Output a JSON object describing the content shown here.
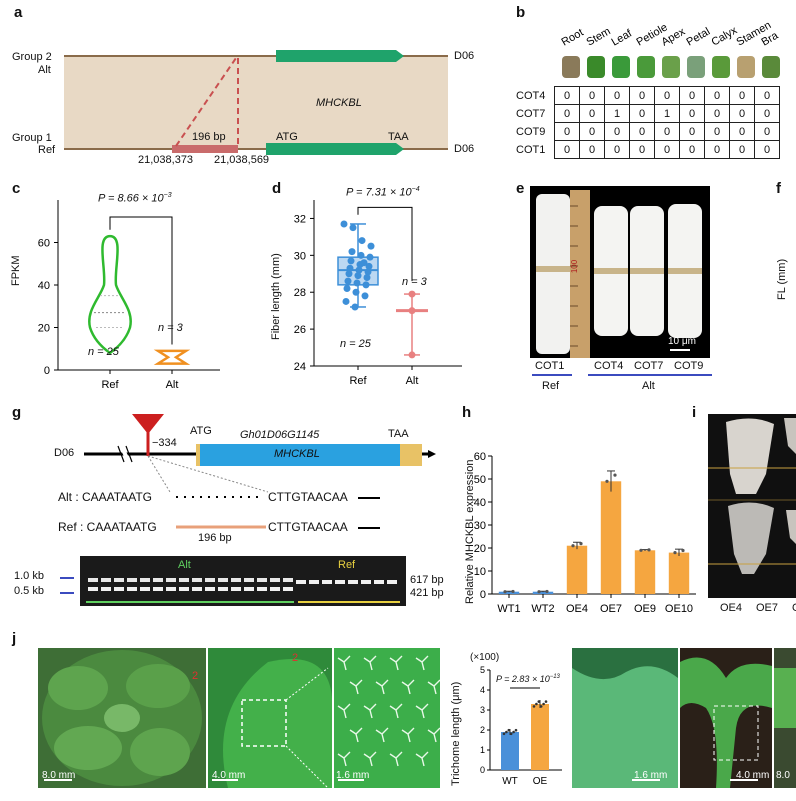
{
  "panels": {
    "a": "a",
    "b": "b",
    "c": "c",
    "d": "d",
    "e": "e",
    "f": "f",
    "g": "g",
    "h": "h",
    "i": "i",
    "j": "j"
  },
  "a": {
    "group2": "Group 2",
    "alt": "Alt",
    "group1": "Group 1",
    "ref": "Ref",
    "d06_top": "D06",
    "d06_bottom": "D06",
    "gene": "MHCKBL",
    "indel": "196 bp",
    "atg": "ATG",
    "taa": "TAA",
    "pos1": "21,038,373",
    "pos2": "21,038,569"
  },
  "b": {
    "tissues": [
      "Root",
      "Stem",
      "Leaf",
      "Petiole",
      "Apex",
      "Petal",
      "Calyx",
      "Stamen",
      "Bra"
    ],
    "rows": [
      {
        "name": "COT4",
        "cells": [
          "0",
          "0",
          "0",
          "0",
          "0",
          "0",
          "0",
          "0",
          "0"
        ]
      },
      {
        "name": "COT7",
        "cells": [
          "0",
          "0",
          "1",
          "0",
          "1",
          "0",
          "0",
          "0",
          "0"
        ]
      },
      {
        "name": "COT9",
        "cells": [
          "0",
          "0",
          "0",
          "0",
          "0",
          "0",
          "0",
          "0",
          "0"
        ]
      },
      {
        "name": "COT1",
        "cells": [
          "0",
          "0",
          "0",
          "0",
          "0",
          "0",
          "0",
          "0",
          "0"
        ]
      }
    ]
  },
  "c": {
    "ylabel": "FPKM",
    "pvalue": "P = 8.66 × 10",
    "pexp": "−3",
    "n_ref": "n = 25",
    "n_alt": "n = 3",
    "chart_data": {
      "type": "violin",
      "categories": [
        "Ref",
        "Alt"
      ],
      "yticks": [
        "0",
        "20",
        "40",
        "60"
      ],
      "ylim": [
        0,
        80
      ],
      "series": [
        {
          "name": "Ref",
          "median": 27,
          "q1": 20,
          "q3": 35,
          "min": 8,
          "max": 63
        },
        {
          "name": "Alt",
          "median": 6,
          "min": 3,
          "max": 9
        }
      ]
    }
  },
  "d": {
    "ylabel": "Fiber length (mm)",
    "pvalue": "P = 7.31 × 10",
    "pexp": "−4",
    "n_ref": "n = 25",
    "n_alt": "n = 3",
    "chart_data": {
      "type": "box",
      "categories": [
        "Ref",
        "Alt"
      ],
      "yticks": [
        "24",
        "26",
        "28",
        "30",
        "32"
      ],
      "ylim": [
        24,
        33
      ],
      "series": [
        {
          "name": "Ref",
          "median": 29.2,
          "q1": 28.4,
          "q3": 29.9,
          "min": 27.2,
          "max": 31.7
        },
        {
          "name": "Alt",
          "mean": 27.0,
          "min": 24.6,
          "max": 27.9,
          "points": [
            24.6,
            27.0,
            27.9
          ]
        }
      ]
    }
  },
  "e": {
    "scale": "10 μm",
    "labels": [
      "COT1",
      "COT4",
      "COT7",
      "COT9"
    ],
    "group_ref": "Ref",
    "group_alt": "Alt",
    "ruler": "100"
  },
  "f": {
    "ylabel": "FL (mm)"
  },
  "g": {
    "d06": "D06",
    "minus334": "−334",
    "atg": "ATG",
    "taa": "TAA",
    "gene_id": "Gh01D06G1145",
    "gene": "MHCKBL",
    "alt_label": "Alt : CAAATAATG",
    "alt_end": "CTTGTAACAA",
    "ref_label": "Ref : CAAATAATG",
    "ref_end": "CTTGTAACAA",
    "indel": "196 bp",
    "gel_alt": "Alt",
    "gel_ref": "Ref",
    "kb1": "1.0 kb",
    "kb05": "0.5 kb",
    "bp617": "617 bp",
    "bp421": "421 bp"
  },
  "h": {
    "ylabel": "Relative MHCKBL expression",
    "chart_data": {
      "type": "bar",
      "categories": [
        "WT1",
        "WT2",
        "OE4",
        "OE7",
        "OE9",
        "OE10"
      ],
      "values": [
        1,
        1,
        21,
        49,
        19,
        18
      ],
      "errors": [
        0.2,
        0.2,
        1.5,
        4.5,
        0.3,
        1.5
      ],
      "colors": [
        "#4a90d9",
        "#4a90d9",
        "#f5a640",
        "#f5a640",
        "#f5a640",
        "#f5a640"
      ],
      "yticks": [
        "0",
        "10",
        "20",
        "30",
        "40",
        "50",
        "60"
      ],
      "ylim": [
        0,
        60
      ]
    }
  },
  "i": {
    "labels": [
      "OE4",
      "OE7",
      "O"
    ]
  },
  "j": {
    "scale1": "8.0 mm",
    "scale2": "4.0 mm",
    "scale3": "1.6 mm",
    "scale4": "1.6 mm",
    "scale5": "4.0 mm",
    "scale6": "8.0",
    "marker1": "2",
    "marker2": "2",
    "ylabel": "Trichome length (μm)",
    "mult": "(×100)",
    "pvalue": "P = 2.83 × 10",
    "pexp": "−13",
    "chart_data": {
      "type": "bar",
      "categories": [
        "WT",
        "OE"
      ],
      "values": [
        1.9,
        3.3
      ],
      "errors": [
        0.15,
        0.2
      ],
      "colors": [
        "#4a90d9",
        "#f5a640"
      ],
      "yticks": [
        "0",
        "1",
        "2",
        "3",
        "4",
        "5"
      ],
      "ylim": [
        0,
        5
      ]
    }
  }
}
